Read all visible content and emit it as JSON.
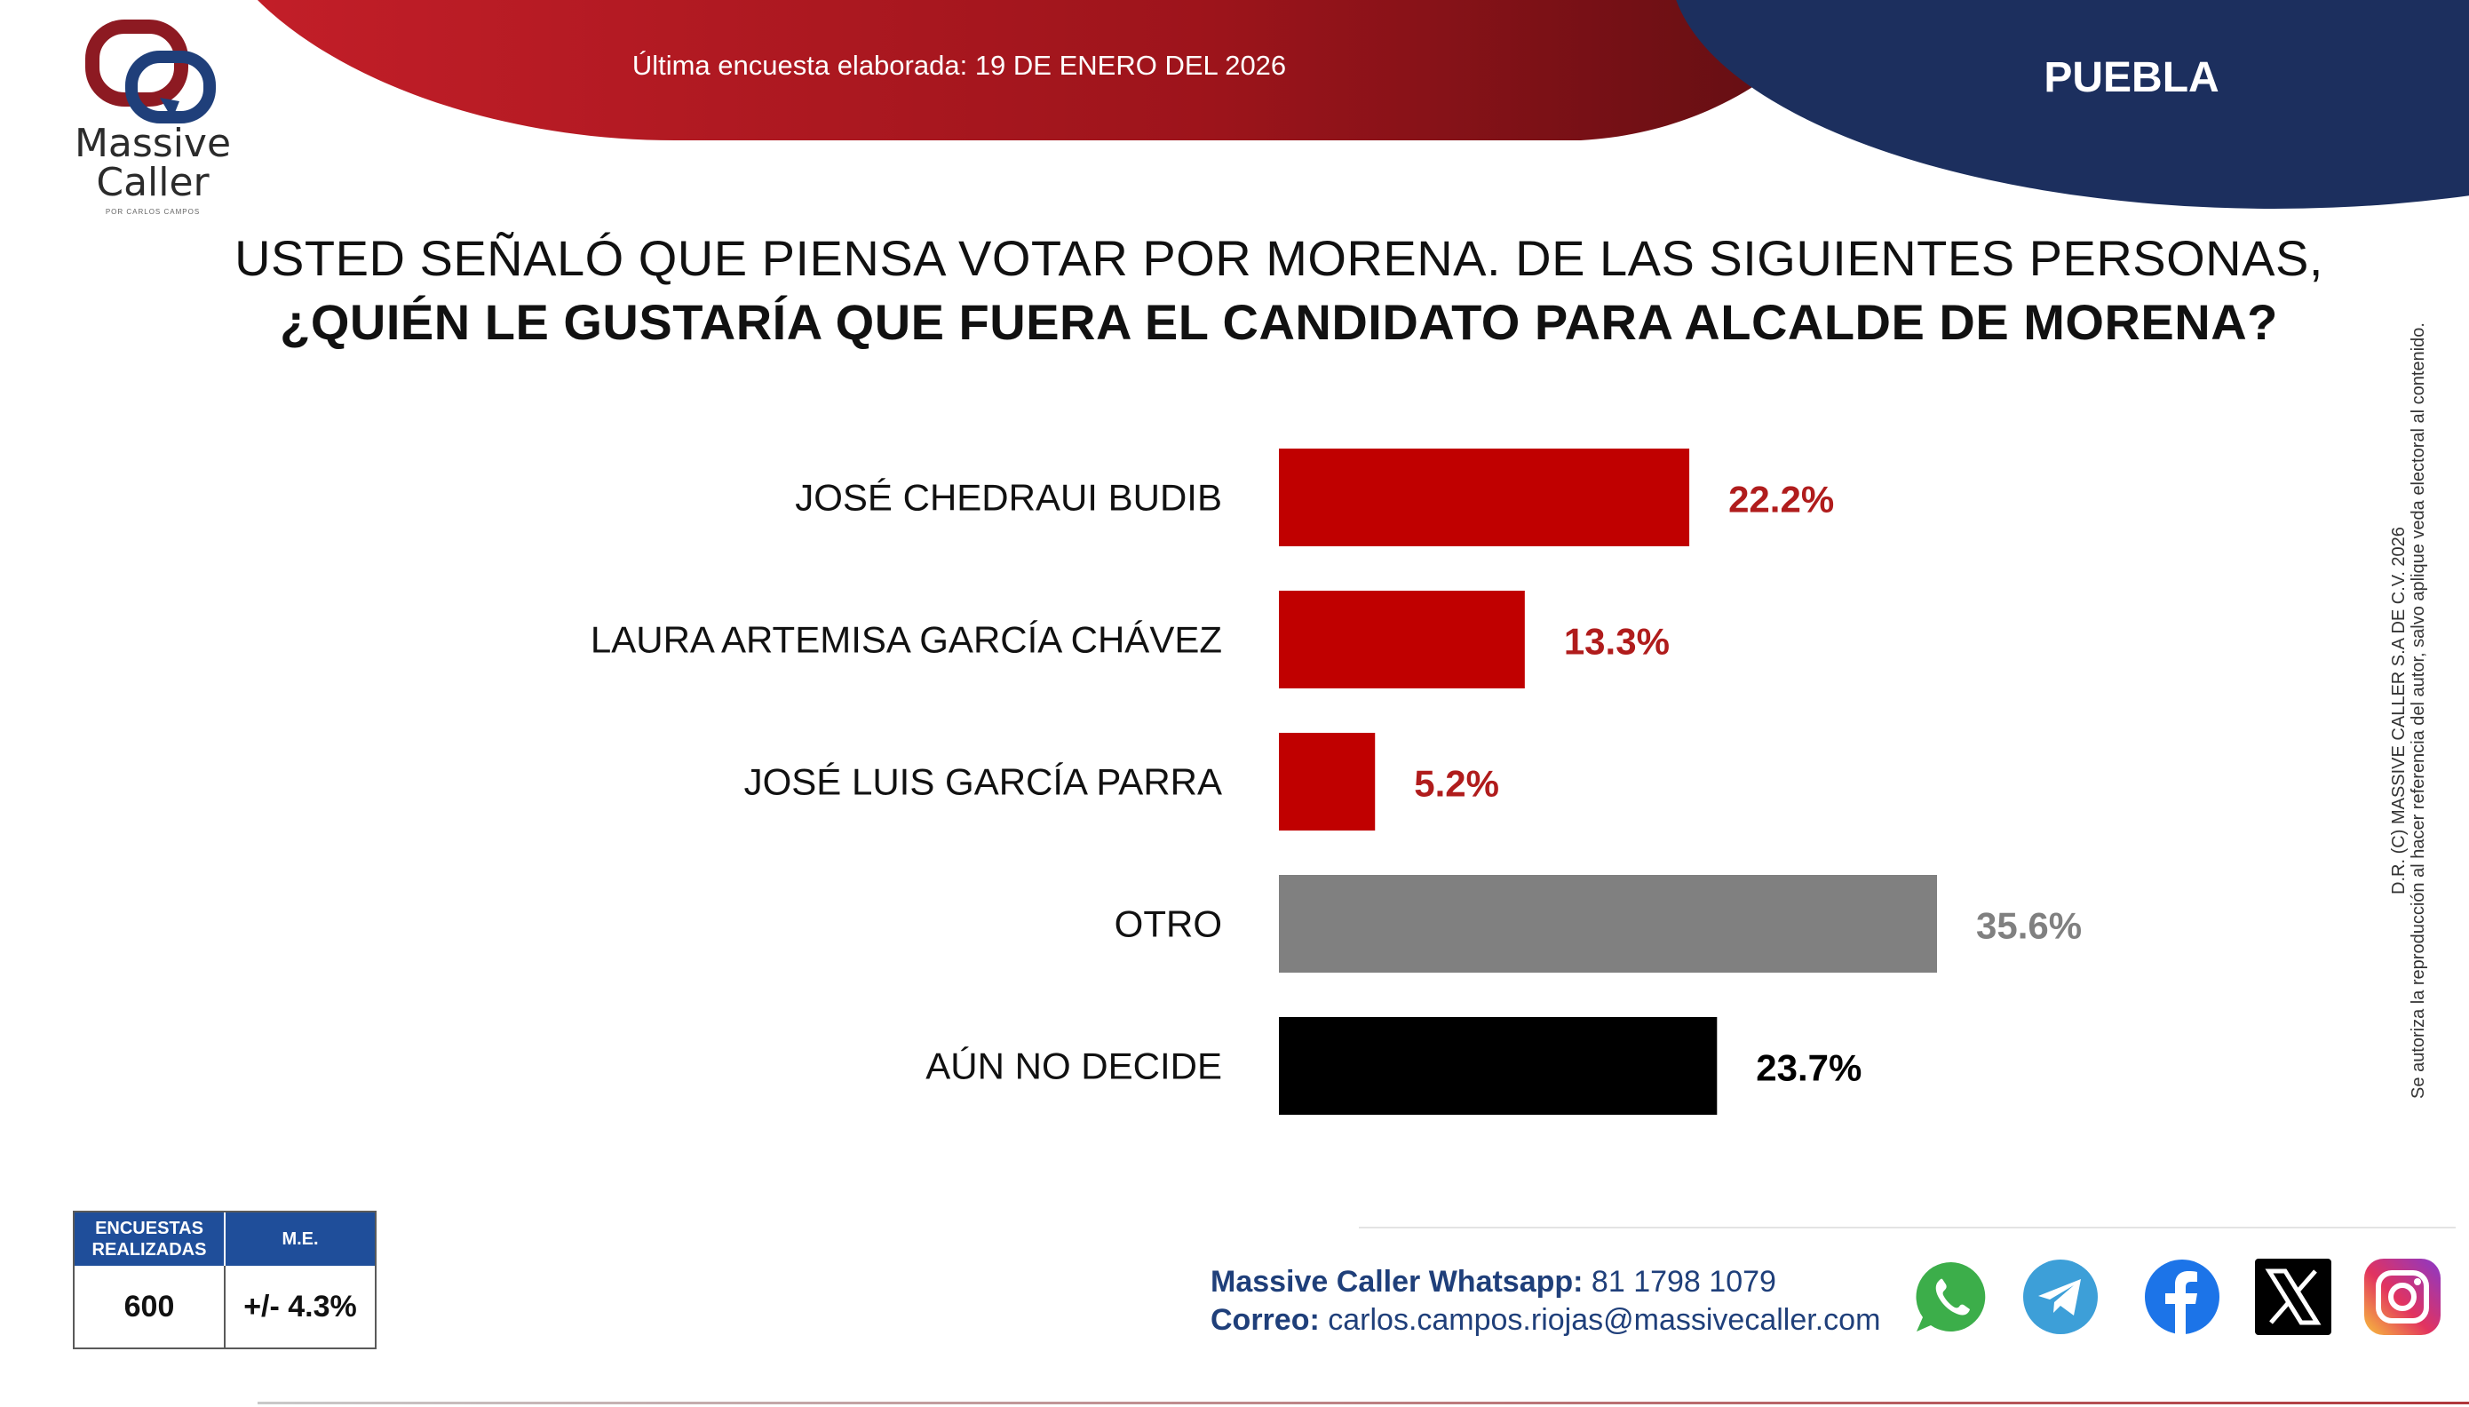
{
  "header": {
    "brand_line1": "Massive",
    "brand_line2": "Caller",
    "brand_sub": "POR CARLOS CAMPOS",
    "survey_date": "Última encuesta elaborada: 19 DE ENERO DEL 2026",
    "region": "PUEBLA"
  },
  "question": {
    "line1": "USTED SEÑALÓ QUE PIENSA VOTAR POR MORENA. DE LAS SIGUIENTES PERSONAS,",
    "line2": "¿QUIÉN LE GUSTARÍA QUE FUERA EL CANDIDATO PARA ALCALDE DE MORENA?"
  },
  "chart_data": {
    "type": "bar",
    "orientation": "horizontal",
    "categories": [
      "JOSÉ CHEDRAUI BUDIB",
      "LAURA ARTEMISA GARCÍA CHÁVEZ",
      "JOSÉ LUIS GARCÍA PARRA",
      "OTRO",
      "AÚN NO DECIDE"
    ],
    "values": [
      22.2,
      13.3,
      5.2,
      35.6,
      23.7
    ],
    "value_labels": [
      "22.2%",
      "13.3%",
      "5.2%",
      "35.6%",
      "23.7%"
    ],
    "colors": [
      "#c00000",
      "#c00000",
      "#c00000",
      "#808080",
      "#000000"
    ],
    "label_colors": [
      "#b01c1c",
      "#b01c1c",
      "#b01c1c",
      "#808080",
      "#000000"
    ],
    "xlim": [
      0,
      35.6
    ],
    "grid": false,
    "legend": "none"
  },
  "stats": {
    "surveys_label": "ENCUESTAS REALIZADAS",
    "surveys_value": "600",
    "me_label": "M.E.",
    "me_value": "+/- 4.3%"
  },
  "contact": {
    "whatsapp_label": "Massive Caller Whatsapp:",
    "whatsapp_value": " 81 1798 1079",
    "email_label": "Correo:",
    "email_value": " carlos.campos.riojas@massivecaller.com"
  },
  "copyright": {
    "line1": "D.R. (C) MASSIVE CALLER S.A DE C.V. 2026",
    "line2": "Se autoriza la reproducción al hacer referencia del autor, salvo aplique veda electoral al contenido."
  },
  "colors": {
    "header_red": "#a9151c",
    "header_navy": "#1c2f5e",
    "stats_blue": "#1f4e9a",
    "contact_blue": "#1f3f7a"
  },
  "social_icons": [
    "whatsapp-icon",
    "telegram-icon",
    "facebook-icon",
    "x-icon",
    "instagram-icon"
  ]
}
